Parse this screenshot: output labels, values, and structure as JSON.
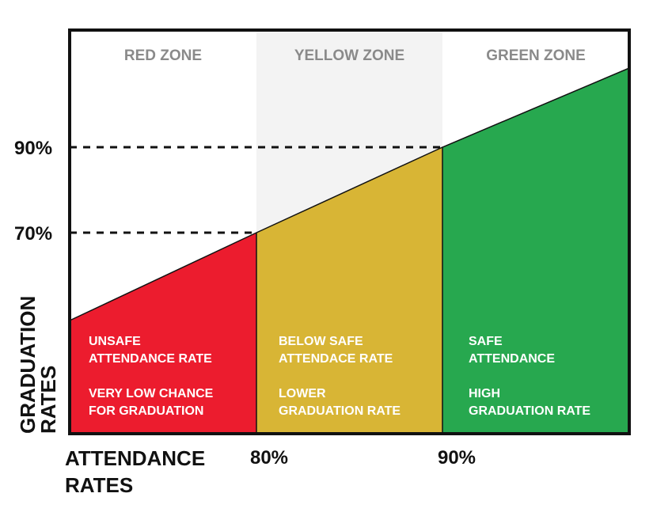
{
  "chart_data": {
    "type": "area",
    "xlabel": "ATTENDANCE RATES",
    "ylabel": "GRADUATION RATES",
    "xlabel_lines": [
      "ATTENDANCE",
      "RATES"
    ],
    "ylabel_lines": [
      "GRADUATION",
      "RATES"
    ],
    "x_ticks": [
      "80%",
      "90%"
    ],
    "y_ticks": [
      "90%",
      "70%"
    ],
    "zones": [
      {
        "name": "RED ZONE",
        "color": "#ec1c2e",
        "background": "#ffffff",
        "text_lines": [
          "UNSAFE",
          "ATTENDANCE RATE",
          "VERY LOW CHANCE",
          "FOR GRADUATION"
        ]
      },
      {
        "name": "YELLOW ZONE",
        "color": "#d8b535",
        "background": "#f3f3f3",
        "text_lines": [
          "BELOW SAFE",
          "ATTENDACE RATE",
          "LOWER",
          "GRADUATION RATE"
        ]
      },
      {
        "name": "GREEN ZONE",
        "color": "#27a84f",
        "background": "#ffffff",
        "text_lines": [
          "SAFE",
          "ATTENDANCE",
          "HIGH",
          "GRADUATION RATE"
        ]
      }
    ],
    "grid": false,
    "legend": "none"
  }
}
